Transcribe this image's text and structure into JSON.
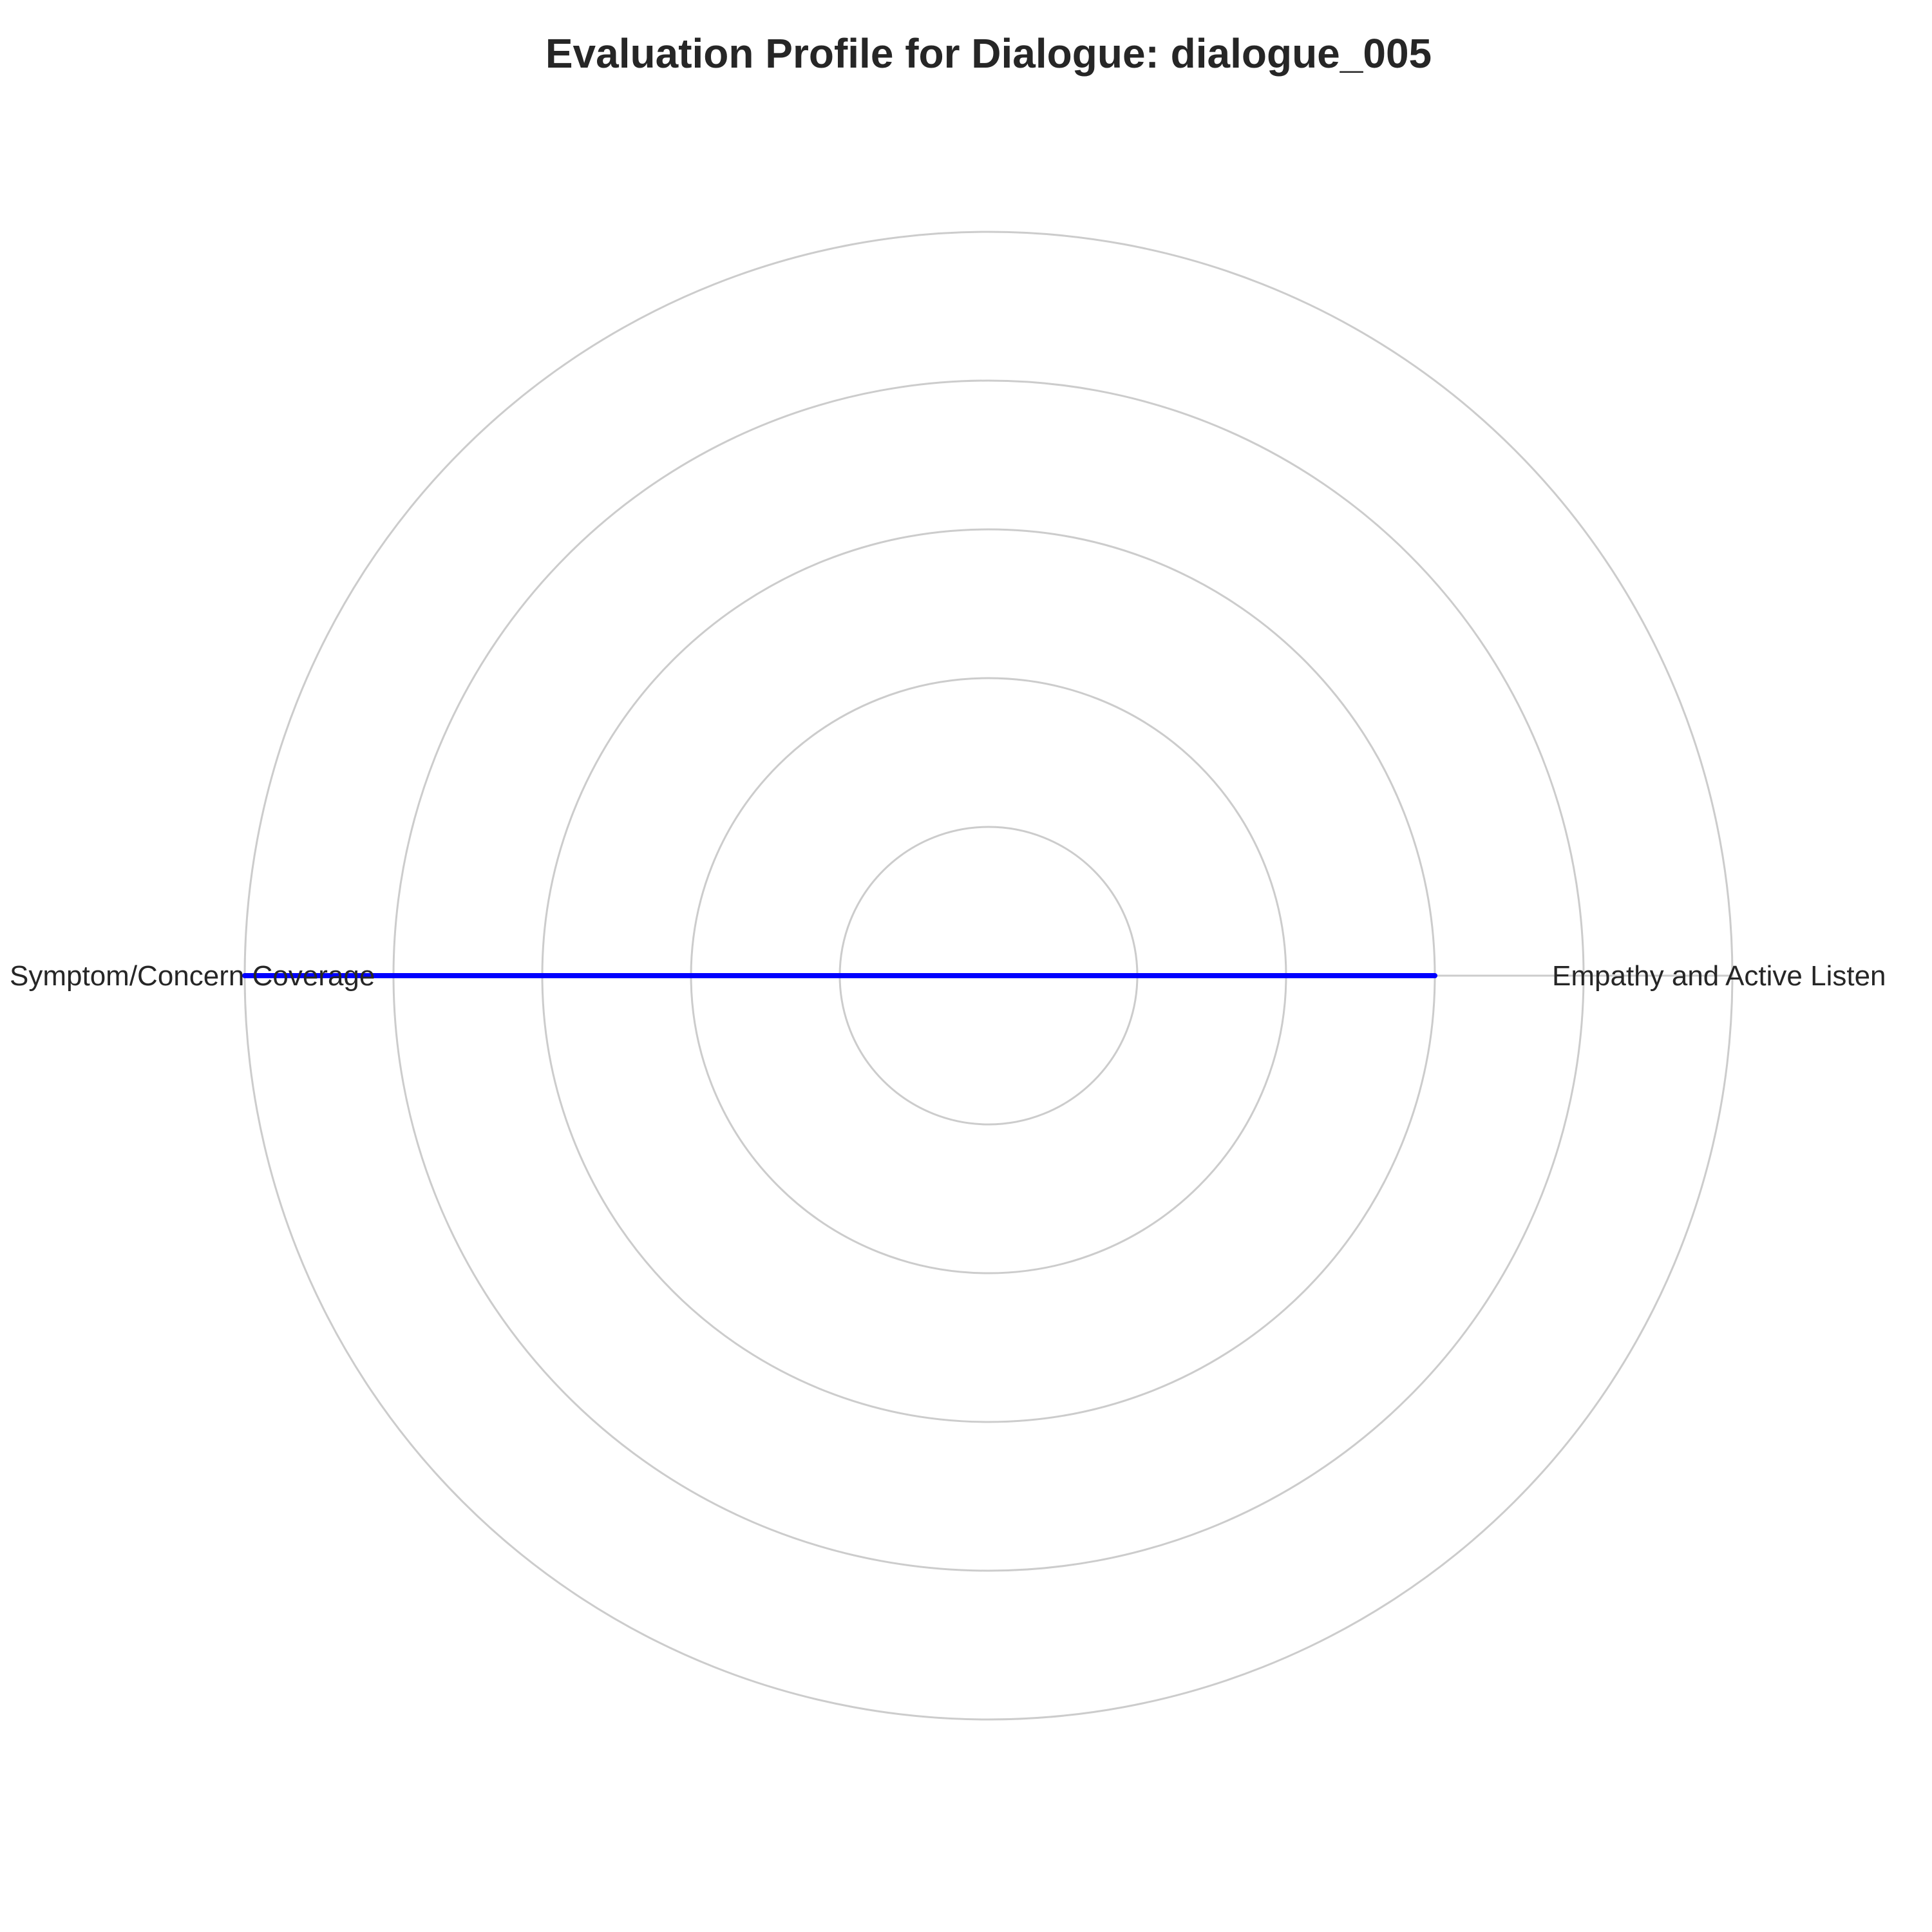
{
  "chart_data": {
    "type": "radar",
    "title": "Evaluation Profile for Dialogue: dialogue_005",
    "axes": [
      "Empathy and Active Listen",
      "Symptom/Concern Coverage"
    ],
    "series": [
      {
        "values": [
          3,
          5
        ],
        "color": "#0000ff"
      }
    ],
    "rlim": [
      0,
      5
    ],
    "rings": [
      1,
      2,
      3,
      4,
      5
    ],
    "grid": true,
    "grid_color": "#cccccc"
  }
}
